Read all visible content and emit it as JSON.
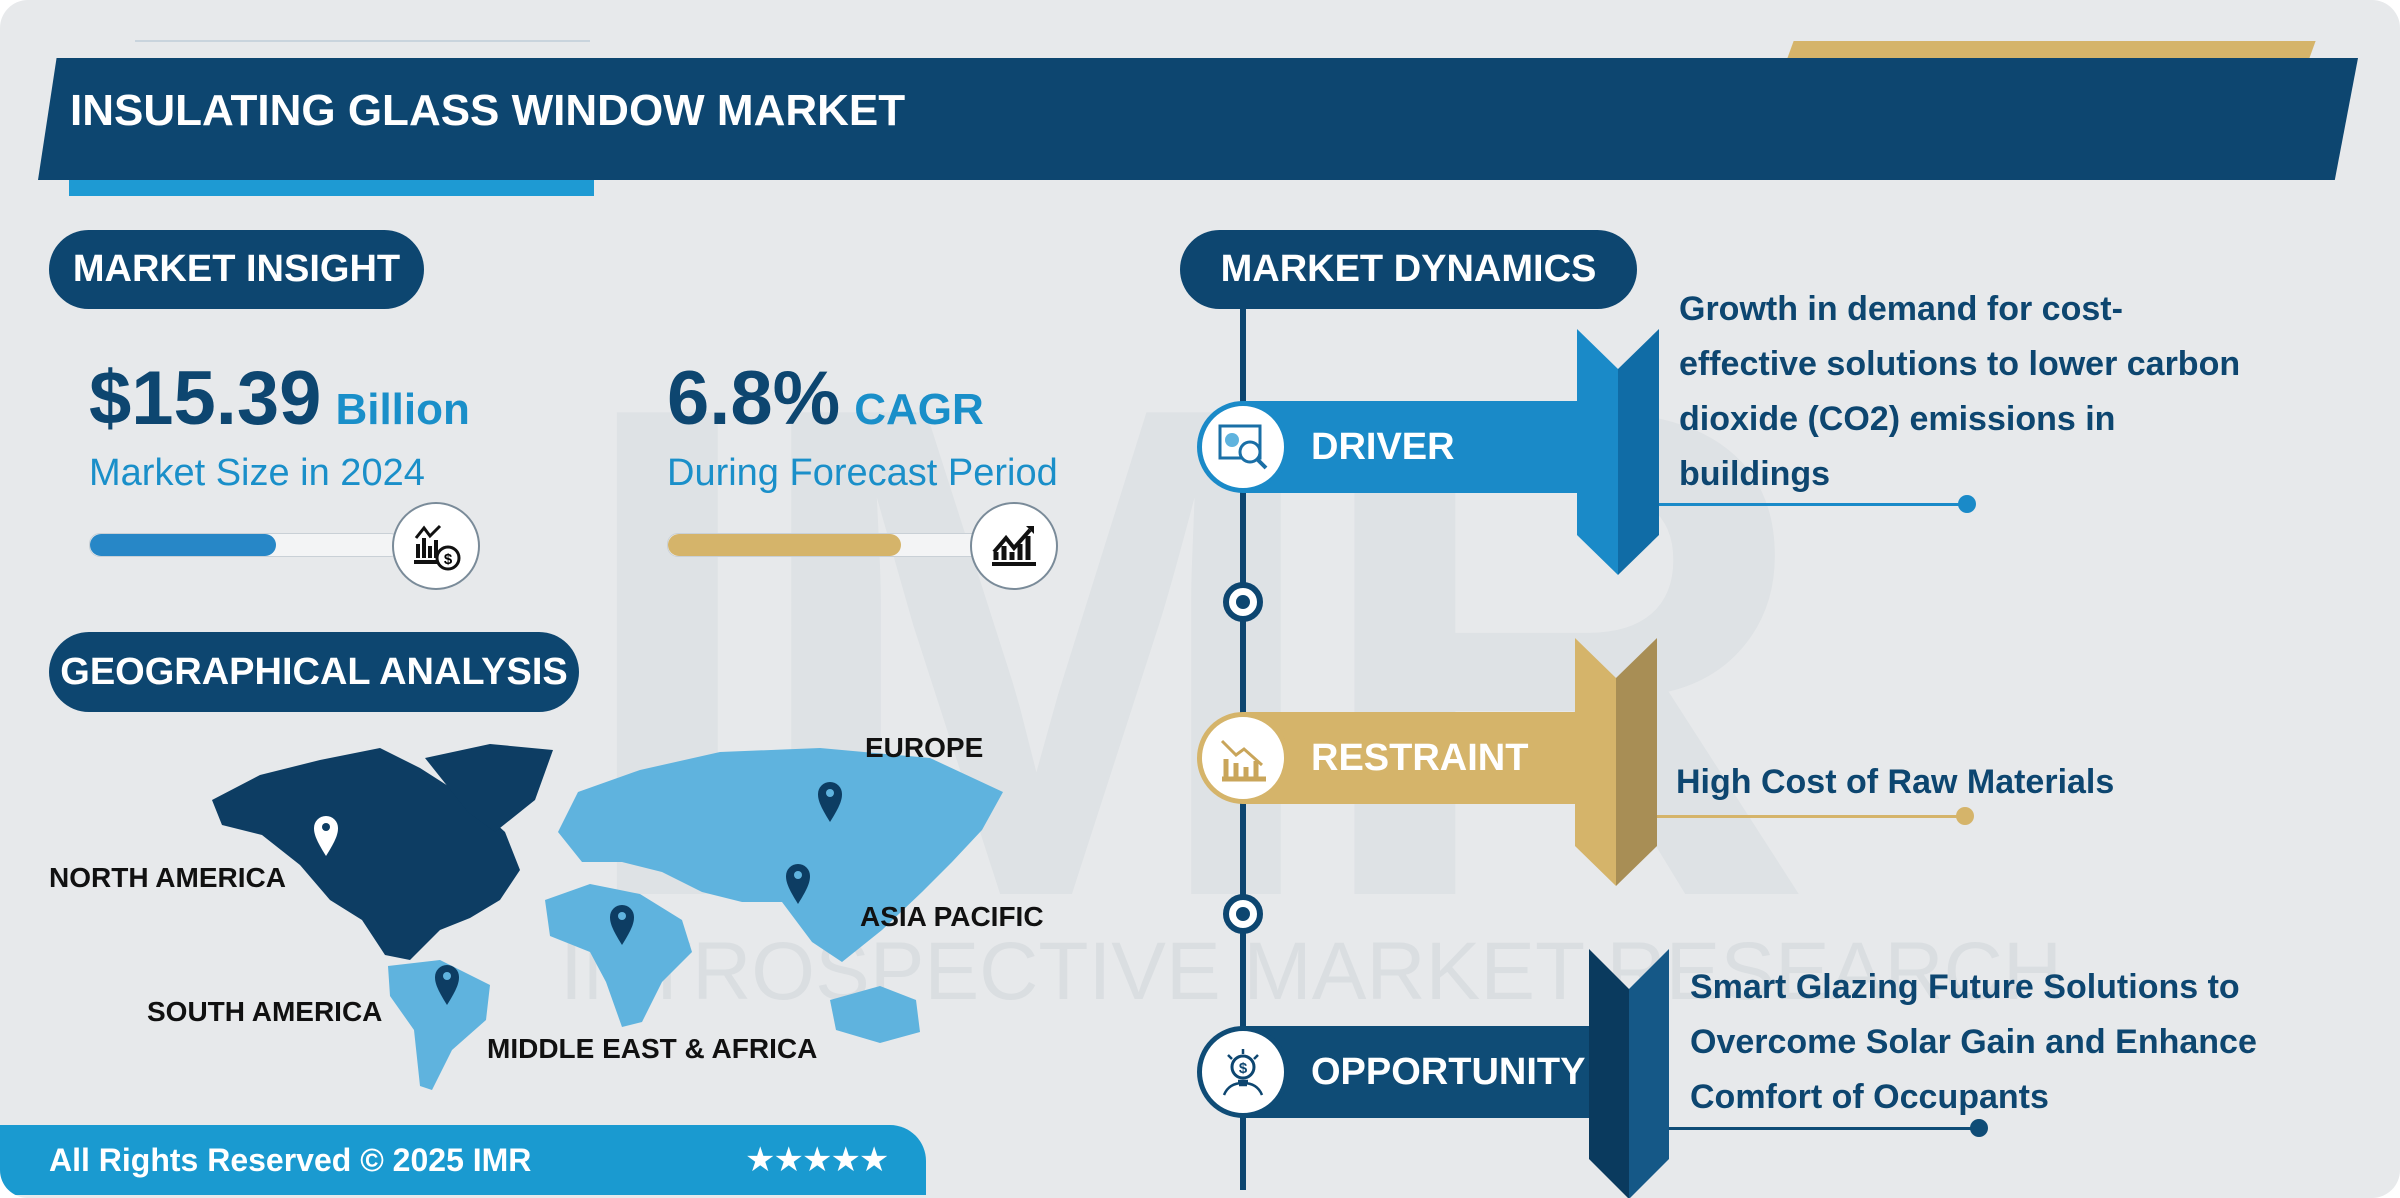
{
  "header": {
    "title": "INSULATING GLASS WINDOW MARKET"
  },
  "watermark": {
    "logo": "IMR",
    "text": "INTROSPECTIVE MARKET RESEARCH"
  },
  "market_insight": {
    "heading": "MARKET INSIGHT",
    "size_value": "$15.39",
    "size_unit": "Billion",
    "size_label": "Market Size in 2024",
    "size_bar_percent": 60,
    "size_icon": "chart-dollar-icon",
    "cagr_value": "6.8%",
    "cagr_unit": "CAGR",
    "cagr_label": "During Forecast Period",
    "cagr_bar_percent": 74,
    "cagr_icon": "growth-chart-icon"
  },
  "geo": {
    "heading": "GEOGRAPHICAL ANALYSIS",
    "regions": [
      "NORTH AMERICA",
      "SOUTH AMERICA",
      "MIDDLE EAST & AFRICA",
      "ASIA PACIFIC",
      "EUROPE"
    ],
    "highlighted_region": "NORTH AMERICA"
  },
  "dynamics": {
    "heading": "MARKET DYNAMICS",
    "items": [
      {
        "label": "DRIVER",
        "text": [
          "Growth in demand for cost-",
          "effective solutions to lower carbon",
          "dioxide (CO2) emissions in",
          "buildings"
        ],
        "color": "#1a8ac8",
        "icon": "analytics-icon"
      },
      {
        "label": "RESTRAINT",
        "text": [
          "High Cost of Raw Materials"
        ],
        "color": "#d5b46a",
        "icon": "declining-chart-icon"
      },
      {
        "label": "OPPORTUNITY",
        "text": [
          "Smart Glazing Future Solutions to",
          "Overcome Solar Gain and Enhance",
          "Comfort of Occupants"
        ],
        "color": "#0f4c76",
        "icon": "idea-dollar-icon"
      }
    ]
  },
  "footer": {
    "copyright": "All Rights Reserved © 2025 IMR",
    "stars": "★★★★★",
    "rating": 5
  },
  "colors": {
    "navy": "#0d4670",
    "blue": "#1a8ac8",
    "gold": "#d5b46a",
    "map_light": "#5fb3de",
    "map_dark": "#0d3d63",
    "background": "#e7e9eb"
  }
}
